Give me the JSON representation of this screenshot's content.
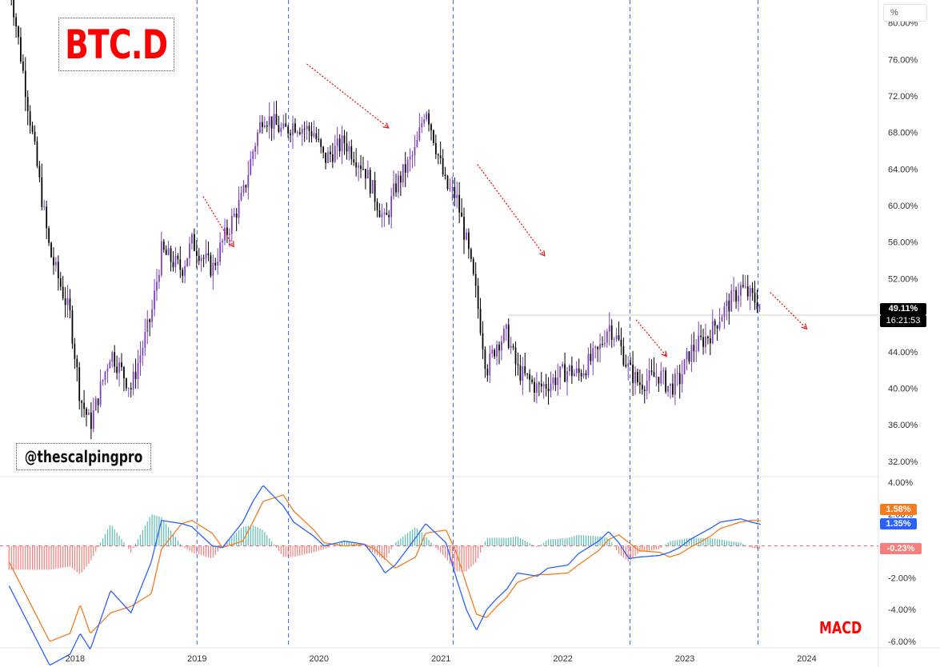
{
  "title": "BTC.D",
  "watermark": "@thescalpingpro",
  "indicator_label": "MACD",
  "unit_button": "%",
  "price_tag": "49.11%",
  "countdown": "16:21:53",
  "signal_tag": "1.58%",
  "macd_tag": "1.35%",
  "histogram_tag": "-0.23%",
  "colors": {
    "bull": "#7e3fbf",
    "bear": "#000000",
    "macd": "#2962ff",
    "signal": "#f57c1f",
    "hist_pos": "#26a69a",
    "hist_neg": "#ef5350",
    "annotation": "#ff0000",
    "divider": "#2962ff"
  },
  "chart_data": [
    {
      "type": "candlestick",
      "title": "BTC.D",
      "interval": "weekly",
      "x": [
        "2017-06",
        "2017-08",
        "2017-10",
        "2017-12",
        "2018-01",
        "2018-02",
        "2018-04",
        "2018-06",
        "2018-08",
        "2018-09",
        "2018-11",
        "2018-12",
        "2019-02",
        "2019-03",
        "2019-05",
        "2019-06",
        "2019-07",
        "2019-09",
        "2019-10",
        "2019-12",
        "2020-01",
        "2020-03",
        "2020-05",
        "2020-06",
        "2020-07",
        "2020-08",
        "2020-10",
        "2020-11",
        "2021-01",
        "2021-02",
        "2021-03",
        "2021-04",
        "2021-05",
        "2021-06",
        "2021-07",
        "2021-08",
        "2021-10",
        "2021-11",
        "2022-01",
        "2022-02",
        "2022-04",
        "2022-05",
        "2022-06",
        "2022-07",
        "2022-08",
        "2022-10",
        "2022-11",
        "2022-12",
        "2023-01",
        "2023-03",
        "2023-04",
        "2023-06",
        "2023-07",
        "2023-08"
      ],
      "close": [
        85.0,
        70.0,
        55.0,
        48.0,
        39.0,
        36.0,
        44.0,
        40.0,
        48.0,
        55.0,
        53.0,
        56.0,
        53.0,
        56.0,
        61.0,
        66.0,
        70.0,
        68.0,
        69.0,
        68.0,
        65.0,
        67.0,
        64.0,
        61.0,
        58.0,
        62.0,
        66.0,
        71.0,
        62.0,
        61.0,
        56.0,
        50.0,
        42.0,
        45.0,
        46.0,
        42.0,
        40.0,
        40.5,
        42.0,
        41.5,
        44.0,
        47.0,
        45.0,
        42.0,
        40.5,
        41.5,
        40.0,
        41.0,
        44.0,
        46.0,
        48.0,
        51.0,
        50.0,
        49.11
      ],
      "yticks": [
        "32.00%",
        "36.00%",
        "40.00%",
        "44.00%",
        "48.00%",
        "52.00%",
        "56.00%",
        "60.00%",
        "64.00%",
        "68.00%",
        "72.00%",
        "76.00%",
        "80.00%"
      ],
      "xticks": [
        "2018",
        "2019",
        "2020",
        "2021",
        "2022",
        "2023",
        "2024"
      ],
      "ylim": [
        30.5,
        82.5
      ],
      "last_value": 49.11
    },
    {
      "type": "line",
      "title": "MACD",
      "x": [
        "2017-06",
        "2017-08",
        "2017-10",
        "2017-12",
        "2018-01",
        "2018-02",
        "2018-04",
        "2018-06",
        "2018-08",
        "2018-09",
        "2018-11",
        "2018-12",
        "2019-02",
        "2019-03",
        "2019-05",
        "2019-06",
        "2019-07",
        "2019-09",
        "2019-10",
        "2019-12",
        "2020-01",
        "2020-03",
        "2020-05",
        "2020-06",
        "2020-07",
        "2020-08",
        "2020-10",
        "2020-11",
        "2021-01",
        "2021-02",
        "2021-03",
        "2021-04",
        "2021-05",
        "2021-06",
        "2021-07",
        "2021-08",
        "2021-10",
        "2021-11",
        "2022-01",
        "2022-02",
        "2022-04",
        "2022-05",
        "2022-06",
        "2022-07",
        "2022-08",
        "2022-10",
        "2022-11",
        "2022-12",
        "2023-01",
        "2023-03",
        "2023-04",
        "2023-06",
        "2023-07",
        "2023-08"
      ],
      "series": [
        {
          "name": "MACD",
          "values": [
            -2.5,
            -5.0,
            -7.5,
            -6.8,
            -5.5,
            -6.5,
            -2.8,
            -4.2,
            -1.0,
            1.6,
            1.4,
            1.2,
            0.0,
            -0.1,
            1.5,
            2.8,
            3.8,
            2.5,
            1.5,
            0.6,
            0.0,
            0.3,
            0.1,
            -0.7,
            -1.7,
            -1.2,
            0.5,
            1.4,
            0.2,
            -2.0,
            -4.0,
            -5.3,
            -4.0,
            -3.3,
            -2.7,
            -1.7,
            -1.9,
            -1.4,
            -1.2,
            -0.5,
            0.3,
            0.9,
            0.2,
            -0.8,
            -0.7,
            -0.6,
            -0.4,
            -0.1,
            0.4,
            1.1,
            1.5,
            1.7,
            1.5,
            1.35
          ]
        },
        {
          "name": "Signal",
          "values": [
            -1.0,
            -3.5,
            -6.0,
            -5.5,
            -3.7,
            -5.5,
            -4.2,
            -3.8,
            -3.0,
            -0.2,
            1.4,
            1.6,
            0.8,
            -0.1,
            0.3,
            1.5,
            2.8,
            3.2,
            2.2,
            1.0,
            0.2,
            0.0,
            0.1,
            -0.2,
            -0.8,
            -1.4,
            -0.7,
            0.8,
            1.0,
            -0.4,
            -2.4,
            -4.3,
            -4.5,
            -3.8,
            -3.2,
            -2.3,
            -1.8,
            -1.8,
            -1.7,
            -1.2,
            -0.3,
            0.4,
            0.7,
            0.2,
            -0.3,
            -0.4,
            -0.7,
            -0.5,
            -0.1,
            0.6,
            1.1,
            1.5,
            1.6,
            1.58
          ]
        },
        {
          "name": "Histogram",
          "values": [
            -1.5,
            -1.5,
            -1.5,
            -1.3,
            -1.8,
            -1.0,
            1.4,
            -0.4,
            2.0,
            1.8,
            0.0,
            -0.4,
            -0.8,
            0.0,
            1.2,
            1.3,
            1.0,
            -0.7,
            -0.7,
            -0.4,
            -0.2,
            0.3,
            0.0,
            -0.5,
            -0.9,
            0.2,
            1.2,
            0.6,
            -0.8,
            -1.6,
            -1.6,
            -1.0,
            0.5,
            0.5,
            0.5,
            0.6,
            -0.1,
            0.4,
            0.5,
            0.7,
            0.6,
            0.5,
            -0.5,
            -1.0,
            -0.4,
            -0.2,
            0.3,
            0.4,
            0.5,
            0.5,
            0.4,
            0.2,
            -0.1,
            -0.23
          ]
        }
      ],
      "yticks": [
        "-6.00%",
        "-4.00%",
        "-2.00%",
        "0.00%",
        "2.00%",
        "4.00%"
      ],
      "ylim": [
        -6.3,
        4.3
      ]
    }
  ]
}
